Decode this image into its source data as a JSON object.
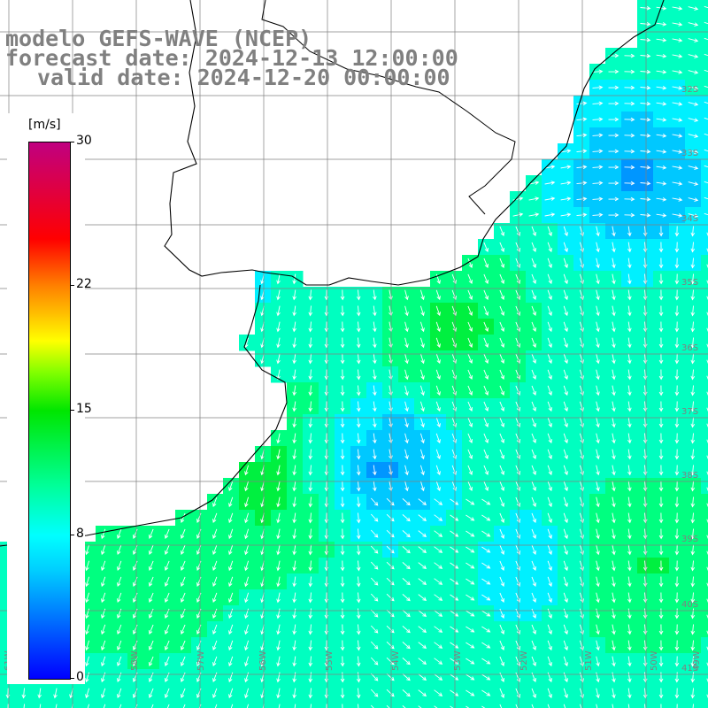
{
  "title": {
    "line1": "modelo GEFS-WAVE (NCEP)",
    "line2": "forecast date: 2024-12-13 12:00:00",
    "line3": "valid date: 2024-12-20 00:00:00"
  },
  "legend": {
    "unit": "[m/s]",
    "ticks": [
      {
        "label": "30",
        "value": 30
      },
      {
        "label": "22",
        "value": 22
      },
      {
        "label": "15",
        "value": 15
      },
      {
        "label": "8",
        "value": 8
      },
      {
        "label": "0",
        "value": 0
      }
    ],
    "range": [
      0,
      30
    ],
    "colors": [
      "#0000ff",
      "#00ccff",
      "#00ffff",
      "#00e600",
      "#ffff00",
      "#ff8000",
      "#ff0000",
      "#c00080"
    ]
  },
  "map": {
    "field": "wind speed with direction arrows",
    "longitude_labels": [
      "61W",
      "59W",
      "58W",
      "57W",
      "56W",
      "55W",
      "54W",
      "53W",
      "52W",
      "51W",
      "50W",
      "49W"
    ],
    "latitude_labels": [
      "32S",
      "33S",
      "34S",
      "35S",
      "36S",
      "37S",
      "38S",
      "39S",
      "40S",
      "41S"
    ],
    "colors": {
      "land": "#ffffff",
      "grid": "#808080",
      "coast": "#000000",
      "arrows": "#ffffff",
      "labels": "#808080"
    }
  }
}
